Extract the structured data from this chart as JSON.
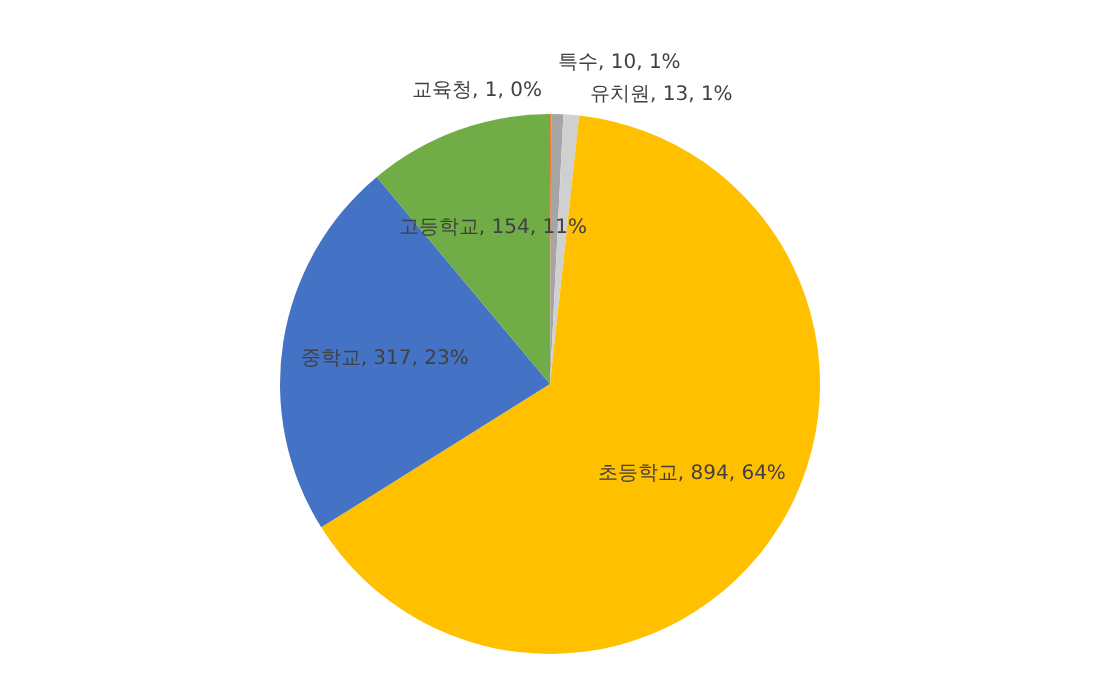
{
  "chart_data": {
    "type": "pie",
    "categories": [
      "교육청",
      "특수",
      "유치원",
      "초등학교",
      "중학교",
      "고등학교"
    ],
    "values": [
      1,
      10,
      13,
      894,
      317,
      154
    ],
    "colors": [
      "#ed7d31",
      "#a5a5a5",
      "#d0d0d0",
      "#ffc000",
      "#4472c4",
      "#70ad47"
    ],
    "value_labels": [
      "1, 0%",
      "10, 1%",
      "13, 1%",
      "894, 64%",
      "317, 23%",
      "154, 11%"
    ],
    "legend": false
  }
}
